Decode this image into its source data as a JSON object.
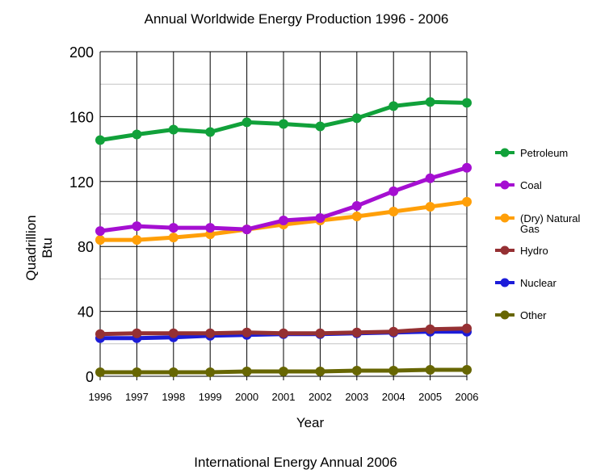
{
  "chart_data": {
    "type": "line",
    "title": "Annual Worldwide Energy Production 1996 - 2006",
    "xlabel": "Year",
    "ylabel": [
      "Quadrillion",
      "Btu"
    ],
    "source": "International Energy Annual 2006",
    "x": [
      "1996",
      "1997",
      "1998",
      "1999",
      "2000",
      "2001",
      "2002",
      "2003",
      "2004",
      "2005",
      "2006"
    ],
    "ylim": [
      0,
      200
    ],
    "yticks": [
      "0",
      "40",
      "80",
      "120",
      "160",
      "200"
    ],
    "grid": true,
    "legend_position": "right",
    "series": [
      {
        "name": "Petroleum",
        "color": "#11a13a",
        "values": [
          145.5,
          149,
          152,
          150.5,
          156.5,
          155.5,
          154,
          159,
          166.5,
          169,
          168.5
        ]
      },
      {
        "name": "Coal",
        "color": "#a50fd1",
        "values": [
          89.5,
          92.5,
          91.5,
          91.5,
          90.5,
          96,
          97.5,
          105,
          114,
          122,
          128.5
        ]
      },
      {
        "name": "(Dry) Natural Gas",
        "name_lines": [
          "(Dry) Natural",
          "Gas"
        ],
        "color": "#ff9f08",
        "values": [
          84,
          84,
          85.5,
          87.5,
          90.5,
          93.5,
          96,
          98.5,
          101.5,
          104.5,
          107.5
        ]
      },
      {
        "name": "Hydro",
        "color": "#953033",
        "values": [
          26,
          26.5,
          26.5,
          26.5,
          27,
          26.5,
          26.5,
          27,
          27.5,
          29,
          29.5
        ]
      },
      {
        "name": "Nuclear",
        "color": "#1c1cd9",
        "values": [
          23.5,
          23.5,
          24,
          25,
          25.5,
          26,
          26,
          26.5,
          27,
          27.5,
          27.5
        ]
      },
      {
        "name": "Other",
        "color": "#676602",
        "values": [
          2.5,
          2.5,
          2.5,
          2.5,
          3,
          3,
          3,
          3.5,
          3.5,
          4,
          4
        ]
      }
    ]
  }
}
